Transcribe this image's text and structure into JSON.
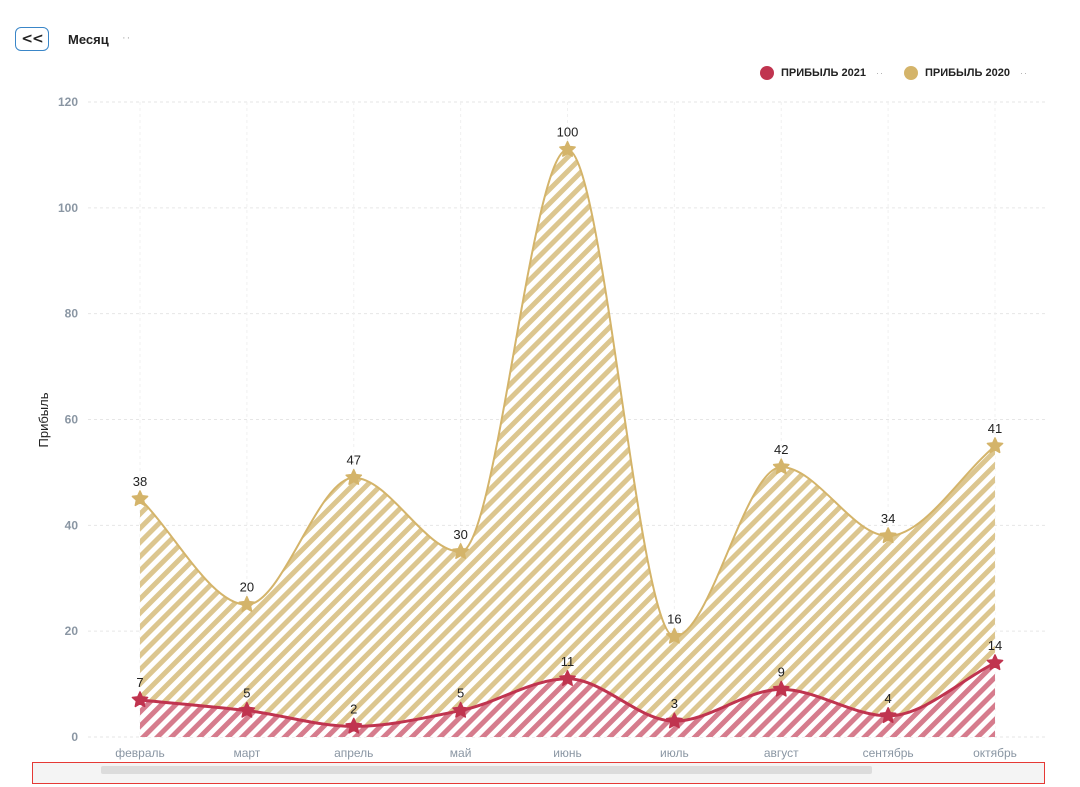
{
  "header": {
    "back_label": "<<",
    "group_label": "Месяц",
    "group_dots": "··"
  },
  "legend": [
    {
      "label": "ПРИБЫЛЬ 2021",
      "color": "#c0344f",
      "dots": "··"
    },
    {
      "label": "ПРИБЫЛЬ 2020",
      "color": "#d4b46a",
      "dots": "··"
    }
  ],
  "chart_data": {
    "type": "area",
    "categories": [
      "февраль",
      "март",
      "апрель",
      "май",
      "июнь",
      "июль",
      "август",
      "сентябрь",
      "октябрь"
    ],
    "ylabel": "Прибыль",
    "xlabel": "",
    "ylim": [
      0,
      120
    ],
    "yticks": [
      0,
      20,
      40,
      60,
      80,
      100,
      120
    ],
    "grid": true,
    "legend_position": "top-right",
    "series": [
      {
        "name": "ПРИБЫЛЬ 2020",
        "color": "#d4b46a",
        "values": [
          45,
          25,
          49,
          35,
          111,
          19,
          51,
          38,
          55
        ],
        "data_labels": [
          "38",
          "20",
          "47",
          "30",
          "100",
          "16",
          "42",
          "34",
          "41"
        ]
      },
      {
        "name": "ПРИБЫЛЬ 2021",
        "color": "#c0344f",
        "values": [
          7,
          5,
          2,
          5,
          11,
          3,
          9,
          4,
          14
        ],
        "data_labels": [
          "7",
          "5",
          "2",
          "5",
          "11",
          "3",
          "9",
          "4",
          "14"
        ]
      }
    ]
  }
}
